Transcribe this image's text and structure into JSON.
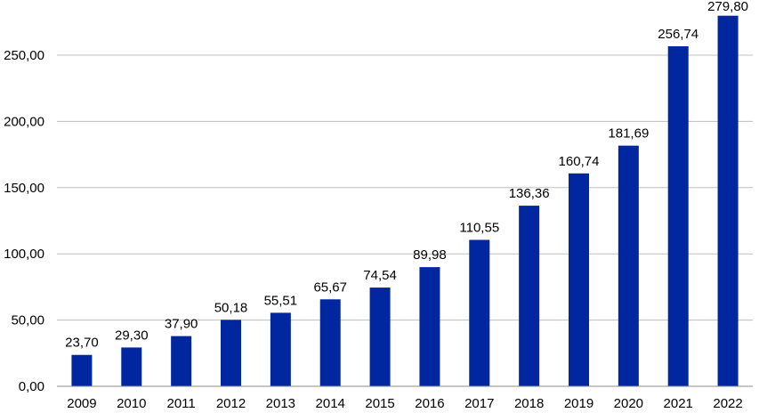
{
  "chart_data": {
    "type": "bar",
    "title": "",
    "xlabel": "",
    "ylabel": "",
    "categories": [
      "2009",
      "2010",
      "2011",
      "2012",
      "2013",
      "2014",
      "2015",
      "2016",
      "2017",
      "2018",
      "2019",
      "2020",
      "2021",
      "2022"
    ],
    "values": [
      23.7,
      29.3,
      37.9,
      50.18,
      55.51,
      65.67,
      74.54,
      89.98,
      110.55,
      136.36,
      160.74,
      181.69,
      256.74,
      279.8
    ],
    "value_labels": [
      "23,70",
      "29,30",
      "37,90",
      "50,18",
      "55,51",
      "65,67",
      "74,54",
      "89,98",
      "110,55",
      "136,36",
      "160,74",
      "181,69",
      "256,74",
      "279,80"
    ],
    "ylim": [
      0,
      275
    ],
    "yticks": [
      0,
      50,
      100,
      150,
      200,
      250
    ],
    "ytick_labels": [
      "0,00",
      "50,00",
      "100,00",
      "150,00",
      "200,00",
      "250,00"
    ],
    "grid": true,
    "legend": "none",
    "colors": {
      "bar": "#0027a0",
      "grid": "#bfbfbf",
      "axis": "#8c8c8c",
      "text": "#000000"
    }
  }
}
